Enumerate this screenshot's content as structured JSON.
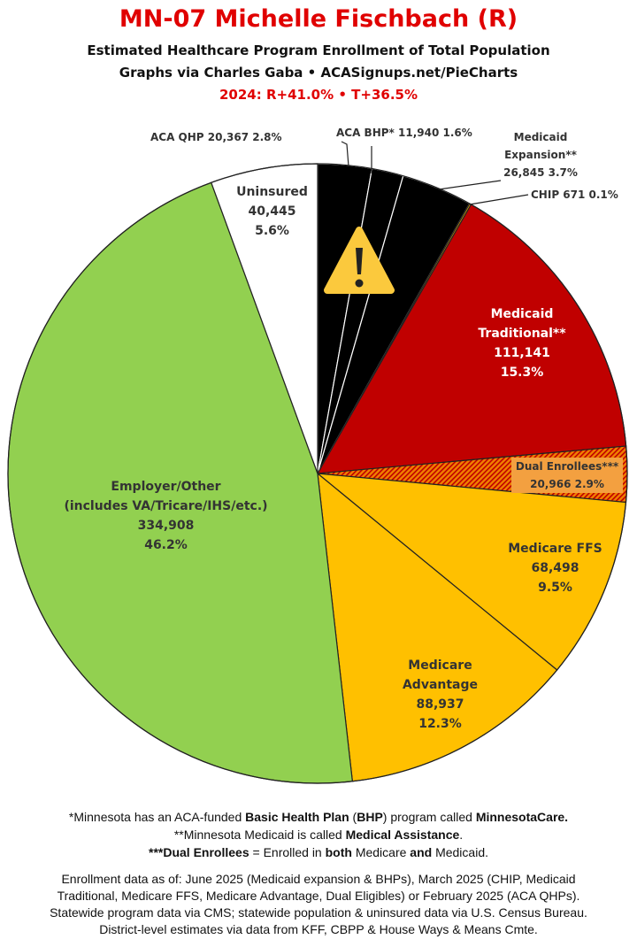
{
  "header": {
    "title": "MN-07 Michelle Fischbach (R)",
    "subtitle1": "Estimated Healthcare Program Enrollment of Total Population",
    "subtitle2": "Graphs via Charles Gaba  •  ACASignups.net/PieCharts",
    "subtitle3": "2024: R+41.0% • T+36.5%"
  },
  "chart_data": {
    "type": "pie",
    "title": "MN-07 Michelle Fischbach (R)",
    "start": "12 o'clock, clockwise",
    "slices": [
      {
        "label": "ACA QHP",
        "value": 20367,
        "pct": "2.8%",
        "color": "#000000",
        "text": "ACA QHP 20,367 2.8%"
      },
      {
        "label": "ACA BHP*",
        "value": 11940,
        "pct": "1.6%",
        "color": "#000000",
        "text": "ACA BHP* 11,940 1.6%"
      },
      {
        "label": "Medicaid Expansion**",
        "value": 26845,
        "pct": "3.7%",
        "color": "#000000",
        "line1": "Medicaid",
        "line2": "Expansion**",
        "line3": "26,845 3.7%"
      },
      {
        "label": "CHIP",
        "value": 671,
        "pct": "0.1%",
        "color": "#e0a000",
        "text": "CHIP 671 0.1%"
      },
      {
        "label": "Medicaid Traditional**",
        "value": 111141,
        "pct": "15.3%",
        "color": "#c00000",
        "line1": "Medicaid",
        "line2": "Traditional**",
        "line3": "111,141",
        "line4": "15.3%"
      },
      {
        "label": "Dual Enrollees***",
        "value": 20966,
        "pct": "2.9%",
        "color": "#f08000",
        "hatched": true,
        "line1": "Dual Enrollees***",
        "line2": "20,966 2.9%"
      },
      {
        "label": "Medicare FFS",
        "value": 68498,
        "pct": "9.5%",
        "color": "#ffc000",
        "line1": "Medicare FFS",
        "line2": "68,498",
        "line3": "9.5%"
      },
      {
        "label": "Medicare Advantage",
        "value": 88937,
        "pct": "12.3%",
        "color": "#ffc000",
        "line1": "Medicare",
        "line2": "Advantage",
        "line3": "88,937",
        "line4": "12.3%"
      },
      {
        "label": "Employer/Other (includes VA/Tricare/IHS/etc.)",
        "value": 334908,
        "pct": "46.2%",
        "color": "#92d050",
        "line1": "Employer/Other",
        "line2": "(includes VA/Tricare/IHS/etc.)",
        "line3": "334,908",
        "line4": "46.2%"
      },
      {
        "label": "Uninsured",
        "value": 40445,
        "pct": "5.6%",
        "color": "#ffffff",
        "line1": "Uninsured",
        "line2": "40,445",
        "line3": "5.6%"
      }
    ],
    "annotation_icon": "warning-icon"
  },
  "footer": {
    "n1": [
      "*Minnesota has an ACA-funded ",
      "Basic Health Plan",
      " (",
      "BHP",
      ") program called ",
      "MinnesotaCare."
    ],
    "n2": [
      "**Minnesota Medicaid is called ",
      "Medical Assistance",
      "."
    ],
    "n3": [
      "***Dual Enrollees",
      " = Enrolled in ",
      "both",
      " Medicare ",
      "and",
      " Medicaid."
    ],
    "s1": "Enrollment data as of: June 2025 (Medicaid expansion & BHPs), March 2025 (CHIP, Medicaid",
    "s2": "Traditional, Medicare FFS, Medicare Advantage, Dual Eligibles) or February 2025 (ACA QHPs).",
    "s3": "Statewide program data via CMS; statewide population & uninsured data via U.S. Census Bureau.",
    "s4": "District-level estimates via data from KFF, CBPP & House Ways & Means Cmte."
  }
}
